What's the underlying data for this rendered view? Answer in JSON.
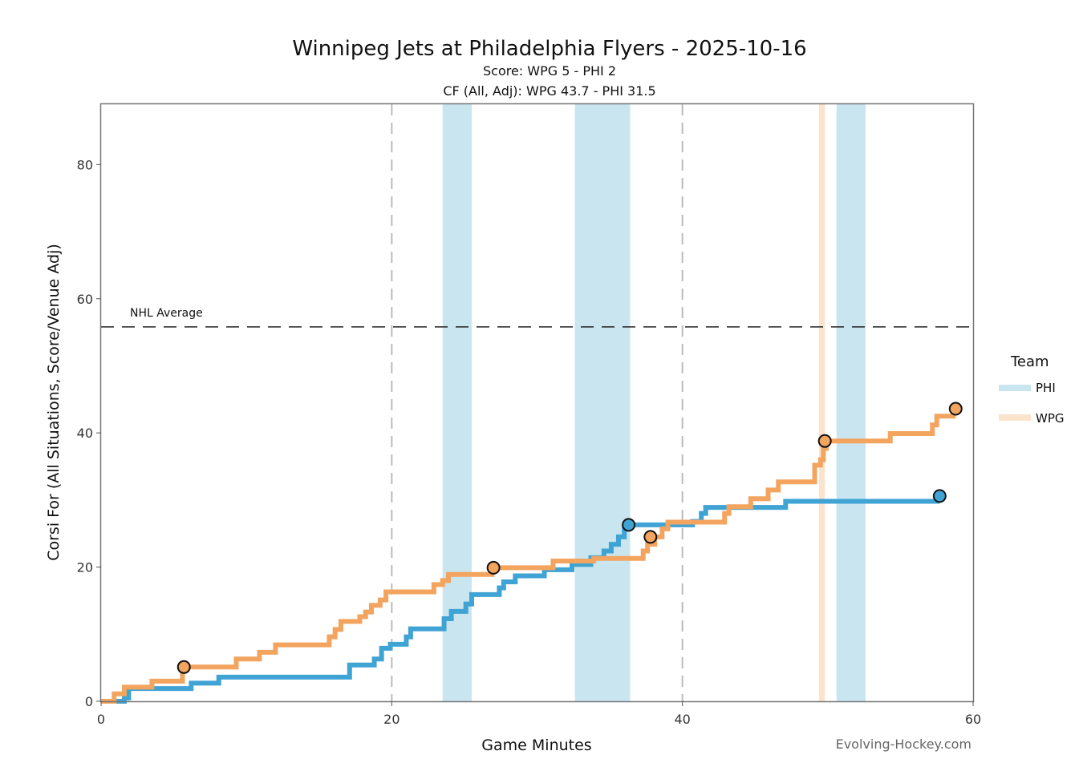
{
  "chart_data": {
    "type": "line",
    "title": "Winnipeg Jets at Philadelphia Flyers - 2025-10-16",
    "subtitle_score": "Score: WPG 5 - PHI 2",
    "subtitle_cf": "CF (All, Adj): WPG 43.7 - PHI 31.5",
    "xlabel": "Game Minutes",
    "ylabel": "Corsi For (All Situations, Score/Venue Adj)",
    "xlim": [
      0,
      60
    ],
    "ylim": [
      0,
      89
    ],
    "xticks": [
      0,
      20,
      40,
      60
    ],
    "yticks": [
      0,
      20,
      40,
      60,
      80
    ],
    "period_lines": [
      20,
      40
    ],
    "nhl_average": {
      "value": 55.8,
      "label": "NHL Average"
    },
    "credit": "Evolving-Hockey.com",
    "legend": {
      "title": "Team",
      "entries": [
        {
          "label": "PHI",
          "color": "#c9e5f0"
        },
        {
          "label": "WPG",
          "color": "#fbe3cc"
        }
      ]
    },
    "penalty_bands": [
      {
        "team": "PHI",
        "start": 23.5,
        "end": 25.5
      },
      {
        "team": "PHI",
        "start": 32.6,
        "end": 36.4
      },
      {
        "team": "WPG",
        "start": 49.4,
        "end": 49.8
      },
      {
        "team": "PHI",
        "start": 50.6,
        "end": 52.6
      }
    ],
    "series": [
      {
        "name": "PHI",
        "color": "#3fa3d4",
        "steps": [
          [
            0,
            0
          ],
          [
            1.6,
            0.5
          ],
          [
            1.9,
            1.9
          ],
          [
            6.2,
            2.7
          ],
          [
            8.1,
            3.6
          ],
          [
            17.1,
            5.4
          ],
          [
            18.8,
            6.3
          ],
          [
            19.3,
            7.9
          ],
          [
            19.9,
            8.5
          ],
          [
            21.0,
            9.6
          ],
          [
            21.3,
            10.8
          ],
          [
            23.6,
            12.3
          ],
          [
            24.1,
            13.4
          ],
          [
            25.1,
            14.5
          ],
          [
            25.5,
            15.9
          ],
          [
            27.4,
            16.9
          ],
          [
            27.7,
            17.8
          ],
          [
            28.5,
            18.7
          ],
          [
            30.5,
            19.6
          ],
          [
            32.4,
            20.4
          ],
          [
            33.7,
            21.4
          ],
          [
            34.6,
            22.4
          ],
          [
            35.1,
            23.4
          ],
          [
            35.6,
            24.5
          ],
          [
            36.0,
            25.8
          ],
          [
            36.4,
            26.3
          ],
          [
            40.7,
            26.8
          ],
          [
            41.3,
            28.0
          ],
          [
            41.6,
            28.9
          ],
          [
            47.1,
            29.8
          ]
        ],
        "end_x": 57.7,
        "markers": [
          {
            "x": 36.3,
            "y": 26.3
          },
          {
            "x": 57.7,
            "y": 30.6
          }
        ]
      },
      {
        "name": "WPG",
        "color": "#f3a45f",
        "steps": [
          [
            0,
            0
          ],
          [
            0.9,
            1.1
          ],
          [
            1.6,
            2.1
          ],
          [
            3.5,
            3.0
          ],
          [
            5.6,
            5.1
          ],
          [
            9.3,
            6.3
          ],
          [
            10.9,
            7.3
          ],
          [
            12.0,
            8.4
          ],
          [
            15.7,
            9.6
          ],
          [
            16.1,
            10.7
          ],
          [
            16.5,
            11.9
          ],
          [
            17.8,
            12.6
          ],
          [
            18.2,
            13.3
          ],
          [
            18.6,
            14.3
          ],
          [
            19.2,
            15.1
          ],
          [
            19.6,
            16.3
          ],
          [
            22.9,
            17.4
          ],
          [
            23.5,
            18.0
          ],
          [
            23.9,
            18.9
          ],
          [
            26.9,
            19.9
          ],
          [
            31.1,
            20.9
          ],
          [
            33.9,
            21.3
          ],
          [
            37.3,
            22.4
          ],
          [
            37.6,
            23.4
          ],
          [
            38.1,
            24.5
          ],
          [
            38.6,
            25.7
          ],
          [
            39.0,
            26.7
          ],
          [
            42.9,
            28.0
          ],
          [
            43.2,
            29.0
          ],
          [
            44.7,
            30.2
          ],
          [
            45.9,
            31.5
          ],
          [
            46.6,
            32.7
          ],
          [
            49.1,
            35.2
          ],
          [
            49.5,
            36.0
          ],
          [
            49.7,
            37.7
          ],
          [
            49.9,
            38.8
          ],
          [
            54.3,
            39.9
          ],
          [
            57.2,
            41.2
          ],
          [
            57.5,
            42.5
          ]
        ],
        "end_x": 58.8,
        "markers": [
          {
            "x": 5.7,
            "y": 5.1
          },
          {
            "x": 27.0,
            "y": 19.9
          },
          {
            "x": 37.8,
            "y": 24.5
          },
          {
            "x": 49.8,
            "y": 38.8
          },
          {
            "x": 58.8,
            "y": 43.6
          }
        ]
      }
    ]
  }
}
